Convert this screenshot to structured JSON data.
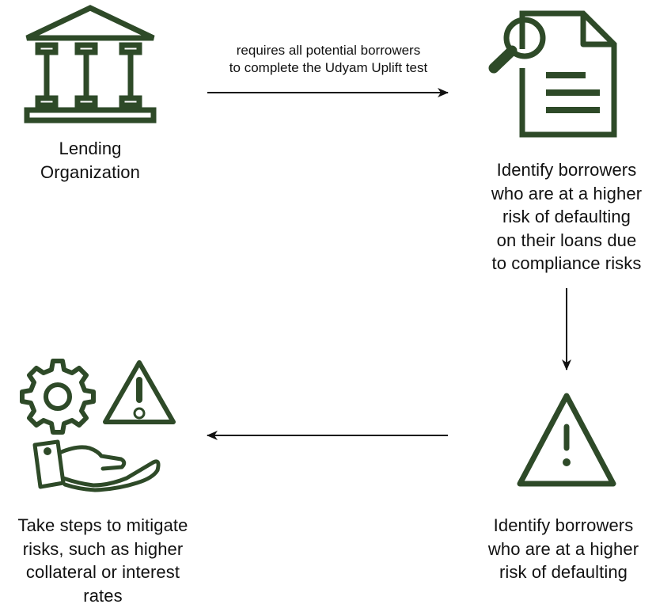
{
  "colors": {
    "icon": "#2e4a28",
    "arrow": "#111111",
    "text": "#111111",
    "background": "#ffffff"
  },
  "nodes": {
    "lender": {
      "icon": "bank-building-icon",
      "label": [
        "Lending",
        "Organization"
      ]
    },
    "identify_compliance": {
      "icon": "document-search-icon",
      "label": [
        "Identify borrowers",
        "who are at a higher",
        "risk of defaulting",
        "on their loans due",
        "to compliance risks"
      ]
    },
    "identify_default": {
      "icon": "warning-triangle-icon",
      "label": [
        "Identify borrowers",
        "who are at a higher",
        "risk of defaulting"
      ]
    },
    "mitigate": {
      "icon": "risk-management-icon",
      "label": [
        "Take steps to mitigate",
        "risks, such as higher",
        "collateral or interest",
        "rates"
      ]
    }
  },
  "edges": {
    "lender_to_identify": {
      "label": [
        "requires all potential borrowers",
        "to complete the Udyam Uplift test"
      ]
    }
  }
}
